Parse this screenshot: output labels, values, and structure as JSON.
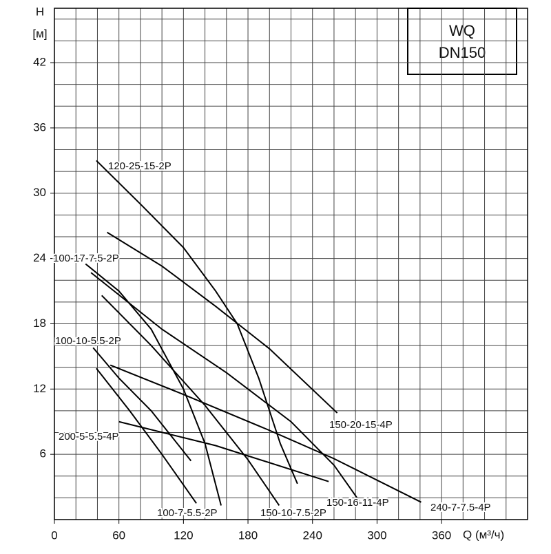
{
  "chart_data": {
    "type": "line",
    "box_text": [
      "WQ",
      "DN150"
    ],
    "ylabel_lines": [
      "H",
      "[м]"
    ],
    "xlabel": "Q (м³/ч)",
    "xlim": [
      0,
      440
    ],
    "ylim": [
      0,
      47
    ],
    "xticks": [
      0,
      60,
      120,
      180,
      240,
      300,
      360
    ],
    "yticks": [
      6,
      12,
      18,
      24,
      30,
      36,
      42
    ],
    "grid": true,
    "series": [
      {
        "name": "120-25-15-2P",
        "color": "#000000",
        "x": [
          39,
          80,
          120,
          150,
          170,
          190,
          210,
          226
        ],
        "values": [
          33,
          29,
          25,
          21,
          18,
          13,
          7,
          3.3
        ]
      },
      {
        "name": "150-20-15-4P",
        "color": "#000000",
        "x": [
          49,
          100,
          150,
          200,
          263
        ],
        "values": [
          26.4,
          23.3,
          19.6,
          15.7,
          9.8
        ]
      },
      {
        "name": "100-17-7.5-2P",
        "color": "#000000",
        "x": [
          29,
          60,
          90,
          120,
          140,
          155
        ],
        "values": [
          23.5,
          21,
          17.5,
          12,
          7,
          1.3
        ]
      },
      {
        "name": "100-10-5.5-2P",
        "color": "#000000",
        "x": [
          36,
          60,
          90,
          127
        ],
        "values": [
          15.8,
          13,
          10,
          5.4
        ]
      },
      {
        "name": "100-7-5.5-2P",
        "color": "#000000",
        "x": [
          39,
          70,
          100,
          132
        ],
        "values": [
          13.9,
          10,
          6,
          1.5
        ]
      },
      {
        "name": "150-16-11-4P",
        "color": "#000000",
        "x": [
          34,
          100,
          160,
          220,
          260,
          285
        ],
        "values": [
          22.7,
          17.5,
          13.5,
          9,
          5,
          1.5
        ]
      },
      {
        "name": "150-10-7.5-2P",
        "color": "#000000",
        "x": [
          44,
          90,
          140,
          180,
          209
        ],
        "values": [
          20.6,
          16,
          10.5,
          5.5,
          1.3
        ]
      },
      {
        "name": "200-5-5.5-4P",
        "color": "#000000",
        "x": [
          60,
          150,
          255
        ],
        "values": [
          9,
          6.8,
          3.5
        ]
      },
      {
        "name": "240-7-7.5-4P",
        "color": "#000000",
        "x": [
          52,
          120,
          200,
          260,
          341
        ],
        "values": [
          14.2,
          11.5,
          8.2,
          5.6,
          1.6
        ]
      }
    ]
  }
}
